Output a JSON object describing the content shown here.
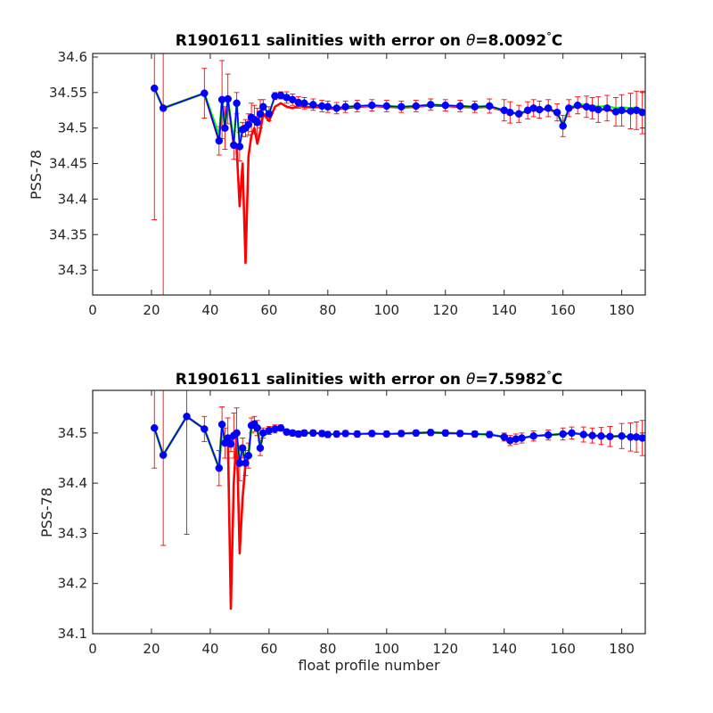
{
  "chart_data": [
    {
      "type": "line",
      "title_prefix": "R1901611 salinities with error on ",
      "title_symbol": "θ",
      "title_value": "=8.0092",
      "title_degree": "°",
      "title_unit": "C",
      "xlabel": "",
      "ylabel": "PSS-78",
      "xlim": [
        0,
        188
      ],
      "ylim": [
        34.265,
        34.605
      ],
      "xticks": [
        0,
        20,
        40,
        60,
        80,
        100,
        120,
        140,
        160,
        180
      ],
      "yticks": [
        34.3,
        34.35,
        34.4,
        34.45,
        34.5,
        34.55,
        34.6
      ],
      "grid": false,
      "colors": {
        "salinity": "#0000ff",
        "error_bars": "#ff0000",
        "red_line": "#ff0000",
        "green_line": "#00ff00"
      },
      "series": [
        {
          "x": [
            21,
            24,
            38,
            43,
            44,
            45,
            46,
            48,
            49,
            50,
            51,
            52,
            53,
            54,
            55,
            56,
            57,
            58,
            60,
            62,
            64,
            66,
            68,
            70,
            72,
            75,
            78,
            80,
            83,
            86,
            90,
            95,
            100,
            105,
            110,
            115,
            120,
            125,
            130,
            135,
            140,
            142,
            145,
            148,
            150,
            152,
            155,
            158,
            160,
            162,
            165,
            168,
            170,
            172,
            175,
            178,
            180,
            183,
            185,
            187
          ],
          "salinity": [
            34.556,
            34.528,
            34.549,
            34.482,
            34.54,
            34.5,
            34.541,
            34.476,
            34.535,
            34.474,
            34.498,
            34.5,
            34.505,
            34.515,
            34.512,
            34.508,
            34.52,
            34.53,
            34.52,
            34.545,
            34.546,
            34.543,
            34.54,
            34.536,
            34.535,
            34.533,
            34.531,
            34.53,
            34.528,
            34.53,
            34.531,
            34.532,
            34.531,
            34.53,
            34.531,
            34.533,
            34.532,
            34.531,
            34.53,
            34.531,
            34.525,
            34.522,
            34.52,
            34.525,
            34.528,
            34.526,
            34.528,
            34.522,
            34.503,
            34.528,
            34.532,
            34.53,
            34.528,
            34.526,
            34.528,
            34.523,
            34.525,
            34.524,
            34.525,
            34.522
          ],
          "error": [
            0.185,
            0.32,
            0.035,
            0.02,
            0.055,
            0.03,
            0.035,
            0.02,
            0.015,
            0.02,
            0.01,
            0.012,
            0.015,
            0.02,
            0.02,
            0.02,
            0.02,
            0.01,
            0.01,
            0.005,
            0.005,
            0.008,
            0.008,
            0.008,
            0.008,
            0.008,
            0.008,
            0.008,
            0.008,
            0.008,
            0.008,
            0.008,
            0.008,
            0.008,
            0.008,
            0.008,
            0.008,
            0.008,
            0.008,
            0.01,
            0.015,
            0.015,
            0.012,
            0.012,
            0.012,
            0.012,
            0.012,
            0.012,
            0.015,
            0.012,
            0.012,
            0.015,
            0.015,
            0.018,
            0.018,
            0.02,
            0.022,
            0.025,
            0.027,
            0.03
          ],
          "red_line": [
            34.556,
            34.528,
            34.549,
            34.482,
            34.54,
            34.5,
            34.541,
            34.476,
            34.47,
            34.39,
            34.45,
            34.31,
            34.46,
            34.49,
            34.5,
            34.478,
            34.495,
            34.52,
            34.51,
            34.53,
            34.535,
            34.53,
            34.528,
            34.531,
            34.53,
            34.529,
            34.53,
            34.528,
            34.527,
            34.528,
            34.53,
            34.531,
            34.53,
            34.529,
            34.53,
            34.532,
            34.531,
            34.53,
            34.529,
            34.53,
            34.524,
            34.522,
            34.52,
            34.524,
            34.527,
            34.525,
            34.527,
            34.521,
            34.505,
            34.527,
            34.531,
            34.529,
            34.527,
            34.525,
            34.527,
            34.522,
            34.524,
            34.523,
            34.524,
            34.521
          ],
          "green_line": [
            34.556,
            34.528,
            34.549,
            34.49,
            34.54,
            34.5,
            34.541,
            34.48,
            34.535,
            34.476,
            34.498,
            34.5,
            34.505,
            34.515,
            34.512,
            34.508,
            34.52,
            34.53,
            34.52,
            34.545,
            34.546,
            34.543,
            34.54,
            34.536,
            34.535,
            34.533,
            34.531,
            34.53,
            34.528,
            34.53,
            34.531,
            34.532,
            34.531,
            34.53,
            34.531,
            34.533,
            34.532,
            34.531,
            34.53,
            34.531,
            34.525,
            34.522,
            34.52,
            34.525,
            34.528,
            34.526,
            34.528,
            34.522,
            34.503,
            34.528,
            34.534,
            34.532,
            34.531,
            34.53,
            34.531,
            34.528,
            34.529,
            34.528,
            34.529,
            34.526
          ]
        }
      ]
    },
    {
      "type": "line",
      "title_prefix": "R1901611 salinities with error on ",
      "title_symbol": "θ",
      "title_value": "=7.5982",
      "title_degree": "°",
      "title_unit": "C",
      "xlabel": "float profile number",
      "ylabel": "PSS-78",
      "xlim": [
        0,
        188
      ],
      "ylim": [
        34.1,
        34.585
      ],
      "xticks": [
        0,
        20,
        40,
        60,
        80,
        100,
        120,
        140,
        160,
        180
      ],
      "yticks": [
        34.1,
        34.2,
        34.3,
        34.4,
        34.5
      ],
      "grid": false,
      "colors": {
        "salinity": "#0000ff",
        "error_bars": "#ff0000",
        "red_line": "#ff0000",
        "green_line": "#00ff00"
      },
      "series": [
        {
          "x": [
            21,
            24,
            32,
            38,
            43,
            44,
            45,
            46,
            47,
            48,
            49,
            50,
            51,
            52,
            53,
            54,
            55,
            56,
            57,
            58,
            60,
            62,
            64,
            66,
            68,
            70,
            72,
            75,
            78,
            80,
            83,
            86,
            90,
            95,
            100,
            105,
            110,
            115,
            120,
            125,
            130,
            135,
            140,
            142,
            144,
            146,
            150,
            155,
            160,
            163,
            167,
            170,
            173,
            176,
            180,
            183,
            185,
            187
          ],
          "salinity": [
            34.51,
            34.456,
            34.533,
            34.508,
            34.43,
            34.517,
            34.48,
            34.49,
            34.478,
            34.495,
            34.5,
            34.44,
            34.47,
            34.44,
            34.455,
            34.515,
            34.518,
            34.51,
            34.47,
            34.5,
            34.505,
            34.508,
            34.51,
            34.502,
            34.5,
            34.498,
            34.5,
            34.5,
            34.499,
            34.497,
            34.498,
            34.499,
            34.498,
            34.499,
            34.498,
            34.499,
            34.5,
            34.501,
            34.5,
            34.499,
            34.498,
            34.497,
            34.492,
            34.485,
            34.488,
            34.49,
            34.494,
            34.496,
            34.498,
            34.5,
            34.497,
            34.495,
            34.494,
            34.493,
            34.494,
            34.492,
            34.492,
            34.49
          ],
          "error": [
            0.08,
            0.18,
            0.235,
            0.025,
            0.035,
            0.035,
            0.03,
            0.04,
            0.015,
            0.045,
            0.05,
            0.035,
            0.02,
            0.025,
            0.025,
            0.015,
            0.015,
            0.015,
            0.015,
            0.01,
            0.008,
            0.008,
            0.006,
            0.006,
            0.006,
            0.006,
            0.006,
            0.006,
            0.006,
            0.006,
            0.006,
            0.006,
            0.006,
            0.006,
            0.006,
            0.006,
            0.006,
            0.006,
            0.006,
            0.006,
            0.006,
            0.006,
            0.008,
            0.01,
            0.01,
            0.01,
            0.01,
            0.01,
            0.012,
            0.012,
            0.015,
            0.015,
            0.017,
            0.02,
            0.025,
            0.028,
            0.03,
            0.035
          ],
          "red_line": [
            34.51,
            34.456,
            34.533,
            34.508,
            34.43,
            34.517,
            34.48,
            34.49,
            34.15,
            34.4,
            34.5,
            34.26,
            34.37,
            34.44,
            34.455,
            34.515,
            34.518,
            34.51,
            34.47,
            34.5,
            34.505,
            34.508,
            34.51,
            34.502,
            34.5,
            34.498,
            34.5,
            34.5,
            34.499,
            34.497,
            34.498,
            34.499,
            34.498,
            34.499,
            34.498,
            34.499,
            34.5,
            34.501,
            34.5,
            34.499,
            34.498,
            34.497,
            34.492,
            34.485,
            34.488,
            34.49,
            34.494,
            34.496,
            34.498,
            34.5,
            34.497,
            34.495,
            34.494,
            34.493,
            34.494,
            34.492,
            34.492,
            34.49
          ],
          "green_line": [
            34.51,
            34.456,
            34.533,
            34.508,
            34.43,
            34.517,
            34.48,
            34.49,
            34.478,
            34.495,
            34.5,
            34.44,
            34.47,
            34.44,
            34.455,
            34.515,
            34.518,
            34.51,
            34.47,
            34.5,
            34.505,
            34.508,
            34.51,
            34.502,
            34.5,
            34.498,
            34.5,
            34.5,
            34.499,
            34.497,
            34.498,
            34.499,
            34.498,
            34.499,
            34.498,
            34.499,
            34.5,
            34.501,
            34.5,
            34.499,
            34.498,
            34.497,
            34.492,
            34.485,
            34.488,
            34.49,
            34.494,
            34.496,
            34.498,
            34.5,
            34.497,
            34.495,
            34.494,
            34.493,
            34.494,
            34.492,
            34.492,
            34.49
          ]
        }
      ]
    }
  ]
}
